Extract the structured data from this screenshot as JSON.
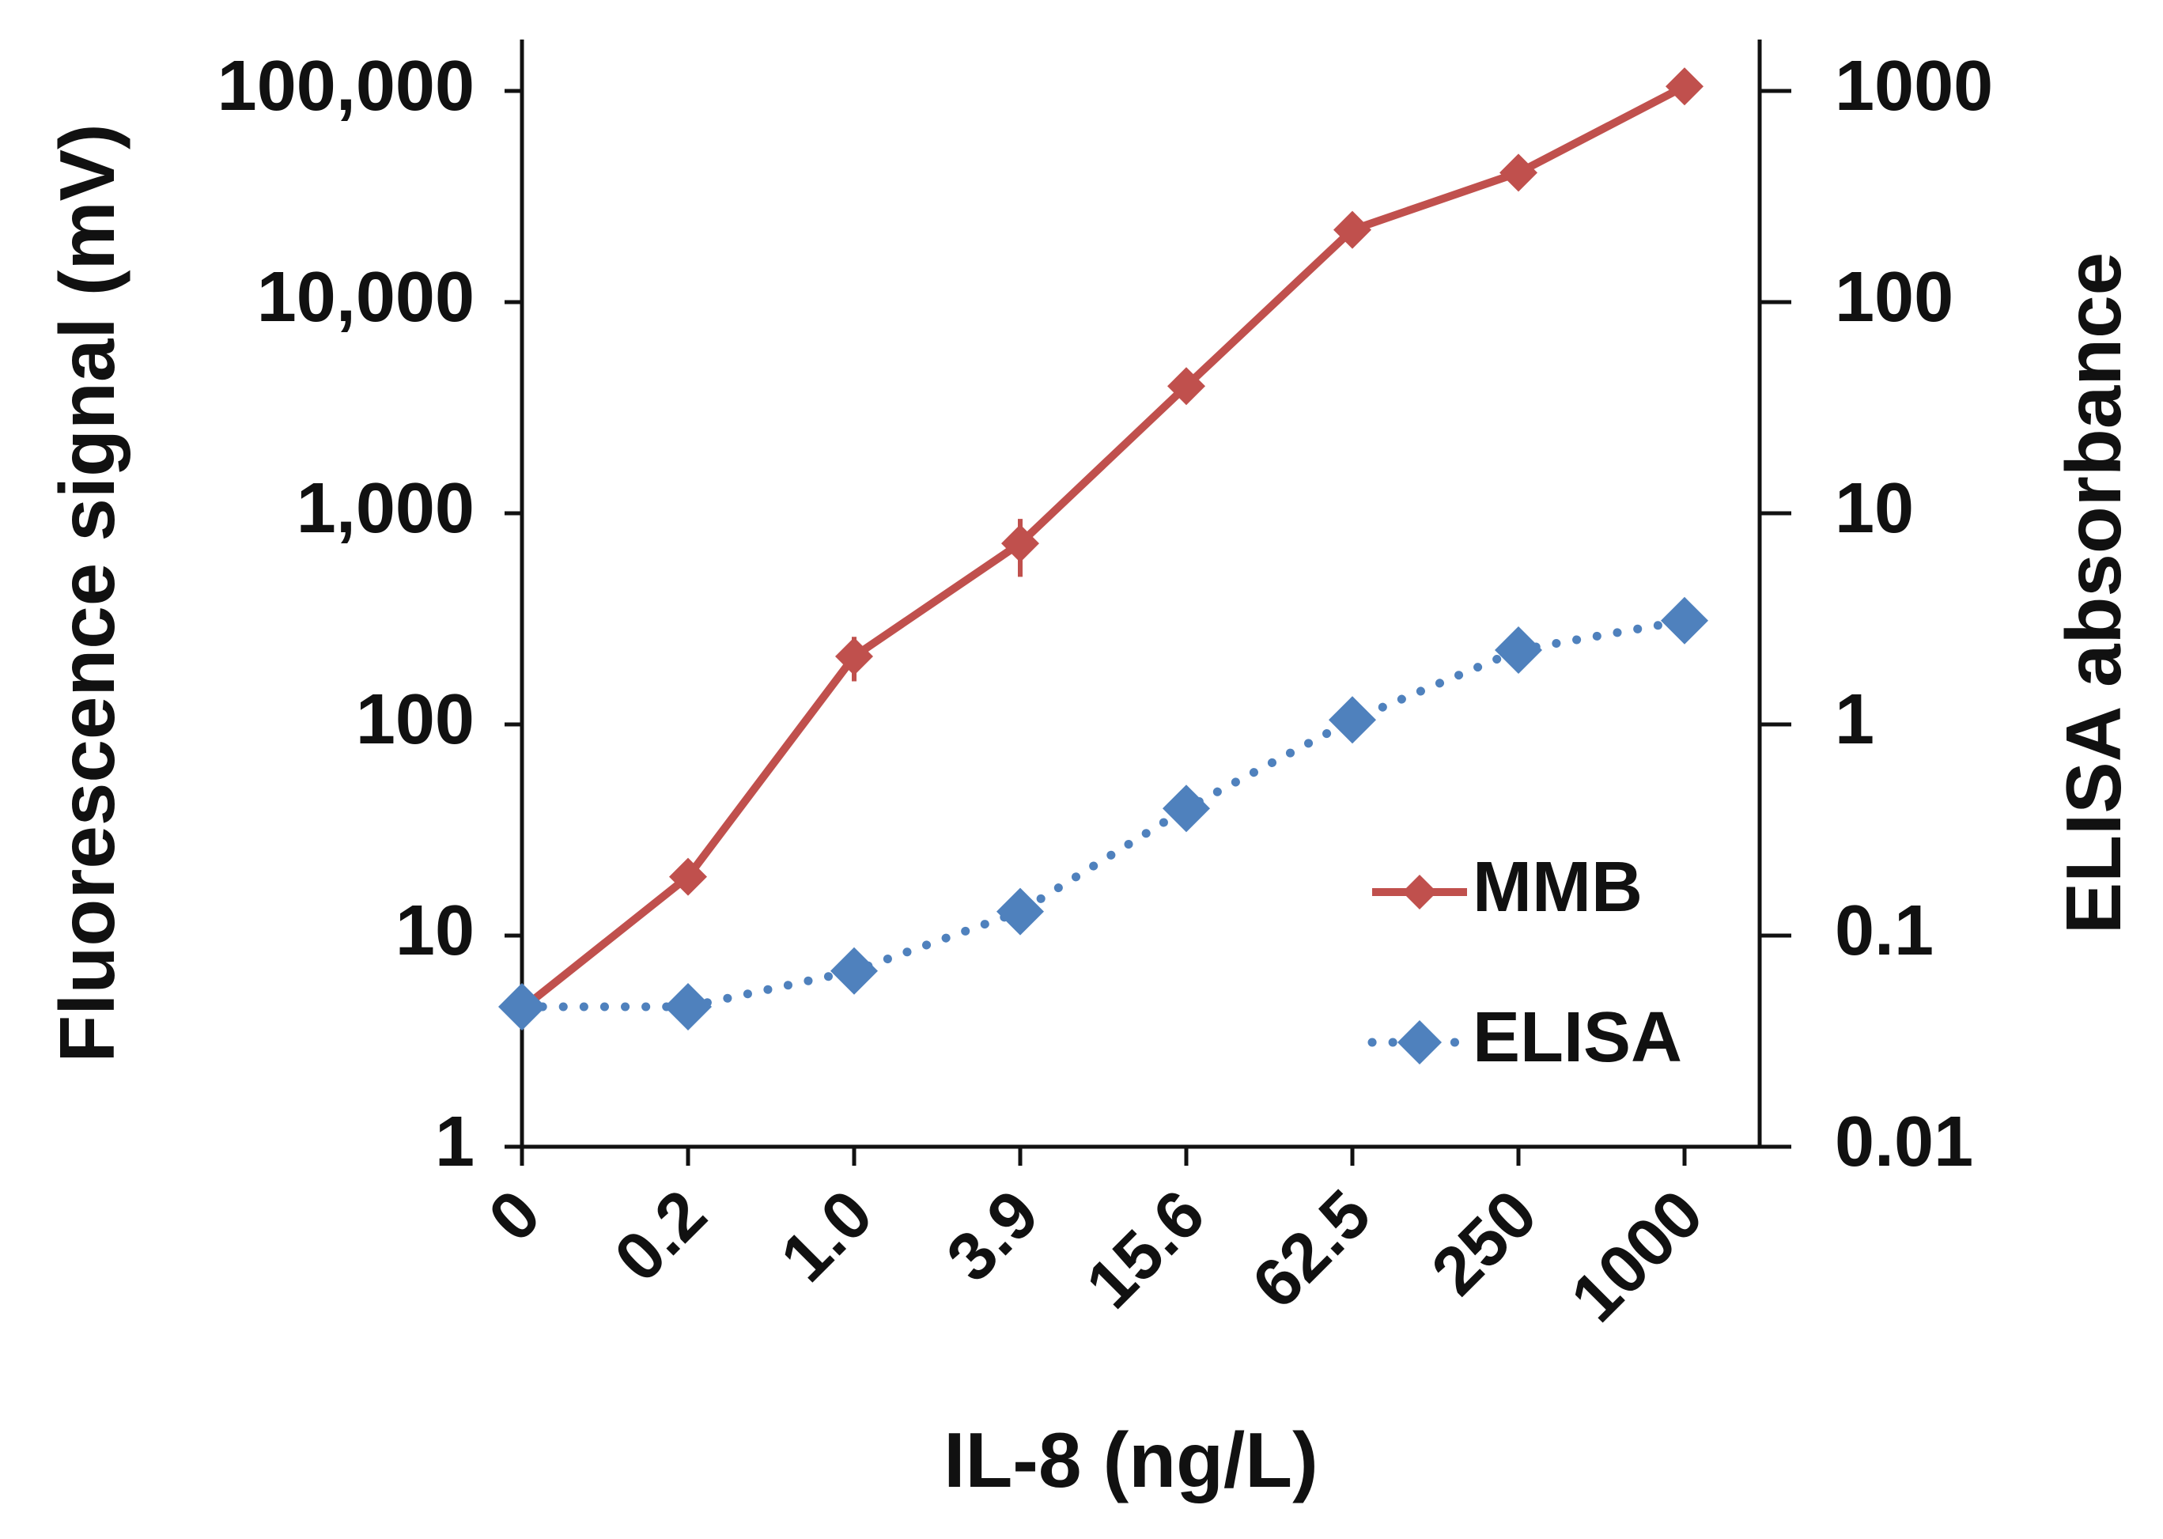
{
  "chart_data": {
    "type": "line",
    "title": "",
    "xlabel": "IL-8 (ng/L)",
    "ylabel": "Fluorescence signal (mV)",
    "y2label": "ELISA absorbance",
    "categories": [
      "0",
      "0.2",
      "1.0",
      "3.9",
      "15.6",
      "62.5",
      "250",
      "1000"
    ],
    "y_scale": "log",
    "ylim": [
      1,
      100000
    ],
    "y_ticks": [
      1,
      10,
      100,
      1000,
      10000,
      100000
    ],
    "y_tick_labels": [
      "1",
      "10",
      "100",
      "1,000",
      "10,000",
      "100,000"
    ],
    "y2_scale": "log",
    "y2lim": [
      0.01,
      1000
    ],
    "y2_ticks": [
      0.01,
      0.1,
      1,
      10,
      100,
      1000
    ],
    "y2_tick_labels": [
      "0.01",
      "0.1",
      "1",
      "10",
      "100",
      "1000"
    ],
    "legend_position": "bottom-right",
    "series": [
      {
        "name": "MMB",
        "axis": "left",
        "values": [
          4.5,
          19,
          210,
          720,
          4000,
          22000,
          41000,
          105000
        ],
        "error": [
          0.8,
          2,
          50,
          220,
          400,
          2000,
          3000,
          5000
        ],
        "color": "#C0504D",
        "style": "solid",
        "marker": "diamond"
      },
      {
        "name": "ELISA",
        "axis": "right",
        "values": [
          0.046,
          0.046,
          0.068,
          0.13,
          0.4,
          1.05,
          2.25,
          3.1
        ],
        "color": "#4F81BD",
        "style": "dotted",
        "marker": "diamond"
      }
    ]
  }
}
